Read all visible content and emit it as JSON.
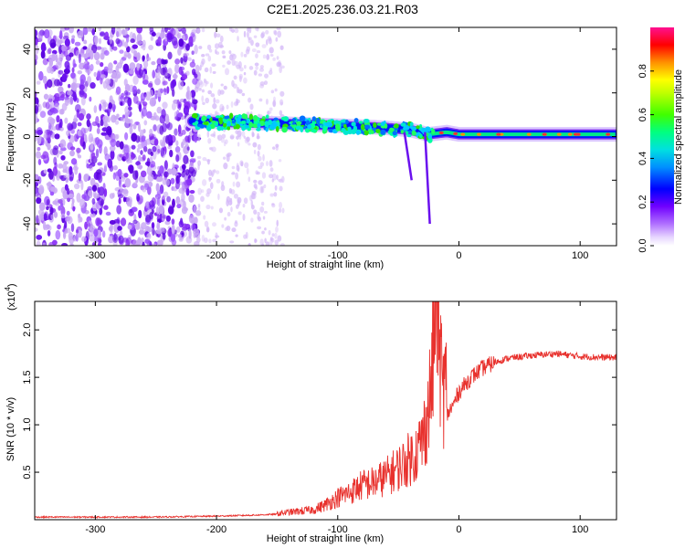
{
  "page": {
    "title": "C2E1.2025.236.03.21.R03"
  },
  "colors": {
    "trace": "#e8312d",
    "frame": "#000000",
    "noise": "#7a1fe6",
    "noise_light": "#c9a8f5",
    "colormap": [
      "#ffffff",
      "#e8d8ff",
      "#a060ff",
      "#6a00ff",
      "#0000ff",
      "#00c8ff",
      "#00ffa0",
      "#30e000",
      "#ffff00",
      "#ff8000",
      "#ff0000",
      "#ff00a0"
    ]
  },
  "chart_data": [
    {
      "type": "heatmap",
      "title": "C2E1.2025.236.03.21.R03",
      "xlabel": "Height of straight line (km)",
      "ylabel": "Frequency (Hz)",
      "xlim": [
        -350,
        130
      ],
      "ylim": [
        -50,
        50
      ],
      "xticks": [
        -300,
        -200,
        -100,
        0,
        100
      ],
      "xtick_labels": [
        "-300",
        "-200",
        "-100",
        "0",
        "100"
      ],
      "yticks": [
        -40,
        -20,
        0,
        20,
        40
      ],
      "ytick_labels": [
        "-40",
        "-20",
        "0",
        "20",
        "40"
      ],
      "colorbar": {
        "label": "Normalized spectral amplitude",
        "range": [
          0.0,
          1.0
        ],
        "ticks": [
          0.0,
          0.2,
          0.4,
          0.6,
          0.8
        ],
        "tick_labels": [
          "0.0",
          "0.2",
          "0.4",
          "0.6",
          "0.8"
        ]
      },
      "features": {
        "noise_region_x": [
          -350,
          -215
        ],
        "faint_noise_region_x": [
          -215,
          -145
        ],
        "signal_band": {
          "x": [
            -220,
            -150,
            -100,
            -60,
            -40,
            -25,
            -10,
            0,
            50,
            100,
            130
          ],
          "freq": [
            7,
            6,
            5,
            4,
            3,
            1,
            2,
            1,
            1,
            1,
            1
          ]
        }
      }
    },
    {
      "type": "line",
      "xlabel": "Height of straight line (km)",
      "ylabel": "SNR (10 * v/v)",
      "y_scale_label": "(x10",
      "y_scale_exponent": "4",
      "xlim": [
        -350,
        130
      ],
      "ylim": [
        0,
        2.3
      ],
      "xticks": [
        -300,
        -200,
        -100,
        0,
        100
      ],
      "xtick_labels": [
        "-300",
        "-200",
        "-100",
        "0",
        "100"
      ],
      "yticks": [
        0.5,
        1.0,
        1.5,
        2.0
      ],
      "ytick_labels": [
        "0.5",
        "1.0",
        "1.5",
        "2.0"
      ],
      "series": [
        {
          "name": "SNR",
          "x": [
            -350,
            -300,
            -250,
            -200,
            -170,
            -150,
            -120,
            -110,
            -100,
            -90,
            -80,
            -70,
            -60,
            -50,
            -40,
            -35,
            -30,
            -25,
            -22,
            -20,
            -18,
            -16,
            -14,
            -12,
            -10,
            -5,
            0,
            10,
            20,
            30,
            40,
            60,
            80,
            100,
            120,
            130
          ],
          "values": [
            0.02,
            0.02,
            0.02,
            0.03,
            0.04,
            0.05,
            0.08,
            0.12,
            0.18,
            0.22,
            0.28,
            0.3,
            0.35,
            0.42,
            0.5,
            0.55,
            0.65,
            0.9,
            1.2,
            1.6,
            2.0,
            1.4,
            1.1,
            1.05,
            1.1,
            1.2,
            1.35,
            1.5,
            1.6,
            1.66,
            1.7,
            1.73,
            1.75,
            1.72,
            1.71,
            1.71
          ]
        }
      ]
    }
  ]
}
